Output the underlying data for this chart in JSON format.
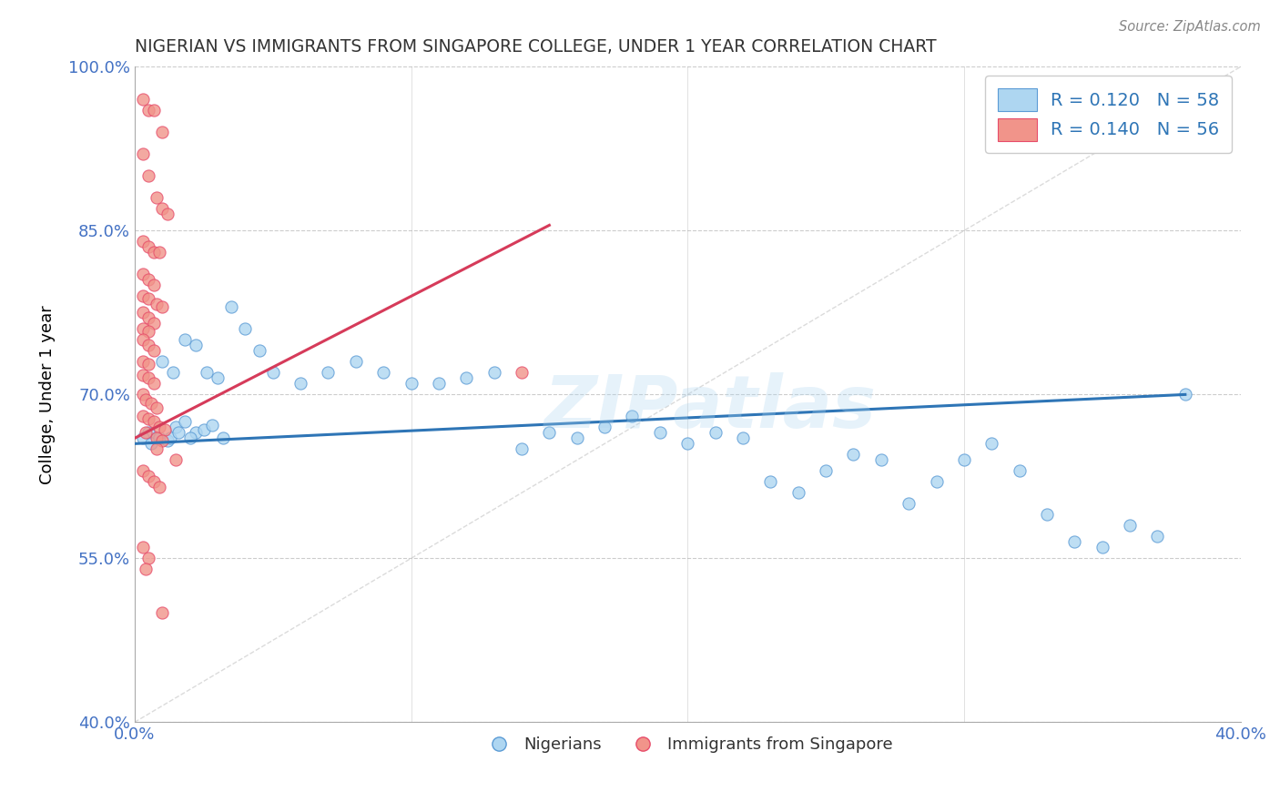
{
  "title": "NIGERIAN VS IMMIGRANTS FROM SINGAPORE COLLEGE, UNDER 1 YEAR CORRELATION CHART",
  "source": "Source: ZipAtlas.com",
  "xmin": 0.0,
  "xmax": 0.4,
  "ymin": 0.4,
  "ymax": 1.0,
  "blue_R": 0.12,
  "blue_N": 58,
  "pink_R": 0.14,
  "pink_N": 56,
  "blue_color": "#AED6F1",
  "pink_color": "#F1948A",
  "blue_edge_color": "#5B9BD5",
  "pink_edge_color": "#E74C6A",
  "blue_line_color": "#2E75B6",
  "pink_line_color": "#D63B5A",
  "ref_line_color": "#CCCCCC",
  "watermark": "ZIPatlas",
  "legend_R_color": "#2E75B6",
  "title_color": "#333333",
  "axis_label_color": "#4472C4",
  "blue_scatter_x": [
    0.005,
    0.008,
    0.012,
    0.015,
    0.018,
    0.022,
    0.025,
    0.028,
    0.032,
    0.01,
    0.014,
    0.018,
    0.022,
    0.026,
    0.03,
    0.035,
    0.04,
    0.045,
    0.05,
    0.06,
    0.07,
    0.08,
    0.09,
    0.1,
    0.11,
    0.12,
    0.13,
    0.14,
    0.15,
    0.16,
    0.17,
    0.18,
    0.19,
    0.2,
    0.21,
    0.22,
    0.23,
    0.24,
    0.25,
    0.26,
    0.27,
    0.28,
    0.29,
    0.3,
    0.31,
    0.32,
    0.33,
    0.34,
    0.35,
    0.36,
    0.37,
    0.003,
    0.006,
    0.009,
    0.013,
    0.016,
    0.02,
    0.38
  ],
  "blue_scatter_y": [
    0.665,
    0.66,
    0.658,
    0.67,
    0.675,
    0.665,
    0.668,
    0.672,
    0.66,
    0.73,
    0.72,
    0.75,
    0.745,
    0.72,
    0.715,
    0.78,
    0.76,
    0.74,
    0.72,
    0.71,
    0.72,
    0.73,
    0.72,
    0.71,
    0.71,
    0.715,
    0.72,
    0.65,
    0.665,
    0.66,
    0.67,
    0.68,
    0.665,
    0.655,
    0.665,
    0.66,
    0.62,
    0.61,
    0.63,
    0.645,
    0.64,
    0.6,
    0.62,
    0.64,
    0.655,
    0.63,
    0.59,
    0.565,
    0.56,
    0.58,
    0.57,
    0.66,
    0.655,
    0.66,
    0.66,
    0.665,
    0.66,
    0.7
  ],
  "pink_scatter_x": [
    0.003,
    0.005,
    0.007,
    0.01,
    0.003,
    0.005,
    0.008,
    0.01,
    0.012,
    0.003,
    0.005,
    0.007,
    0.009,
    0.003,
    0.005,
    0.007,
    0.003,
    0.005,
    0.008,
    0.01,
    0.003,
    0.005,
    0.007,
    0.003,
    0.005,
    0.003,
    0.005,
    0.007,
    0.003,
    0.005,
    0.14,
    0.003,
    0.005,
    0.007,
    0.003,
    0.004,
    0.006,
    0.008,
    0.003,
    0.005,
    0.007,
    0.009,
    0.011,
    0.004,
    0.008,
    0.01,
    0.008,
    0.015,
    0.003,
    0.005,
    0.007,
    0.009,
    0.003,
    0.005,
    0.004,
    0.01
  ],
  "pink_scatter_y": [
    0.97,
    0.96,
    0.96,
    0.94,
    0.92,
    0.9,
    0.88,
    0.87,
    0.865,
    0.84,
    0.835,
    0.83,
    0.83,
    0.81,
    0.805,
    0.8,
    0.79,
    0.788,
    0.783,
    0.78,
    0.775,
    0.77,
    0.765,
    0.76,
    0.758,
    0.75,
    0.745,
    0.74,
    0.73,
    0.728,
    0.72,
    0.718,
    0.715,
    0.71,
    0.7,
    0.695,
    0.692,
    0.688,
    0.68,
    0.678,
    0.675,
    0.67,
    0.668,
    0.665,
    0.66,
    0.658,
    0.65,
    0.64,
    0.63,
    0.625,
    0.62,
    0.615,
    0.56,
    0.55,
    0.54,
    0.5
  ],
  "blue_trend_x": [
    0.0,
    0.38
  ],
  "blue_trend_y": [
    0.655,
    0.7
  ],
  "pink_trend_x": [
    0.0,
    0.15
  ],
  "pink_trend_y": [
    0.66,
    0.855
  ],
  "ref_line_x": [
    0.0,
    0.4
  ],
  "ref_line_y": [
    0.4,
    1.0
  ],
  "ylabel_values": [
    0.4,
    0.55,
    0.7,
    0.85,
    1.0
  ],
  "xtick_show": [
    0.0,
    0.4
  ]
}
